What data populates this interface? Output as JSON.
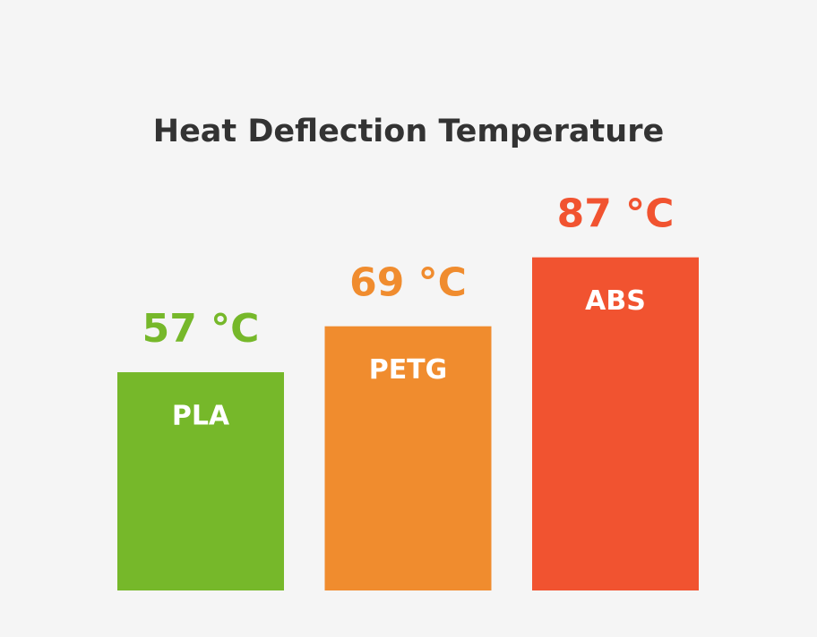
{
  "chart_data": {
    "type": "bar",
    "title": "Heat Deflection Temperature",
    "categories": [
      "PLA",
      "PETG",
      "ABS"
    ],
    "values": [
      57,
      69,
      87
    ],
    "value_labels": [
      "57 °C",
      "69 °C",
      "87 °C"
    ],
    "colors": [
      "#76b82a",
      "#f08c2e",
      "#f15330"
    ]
  }
}
